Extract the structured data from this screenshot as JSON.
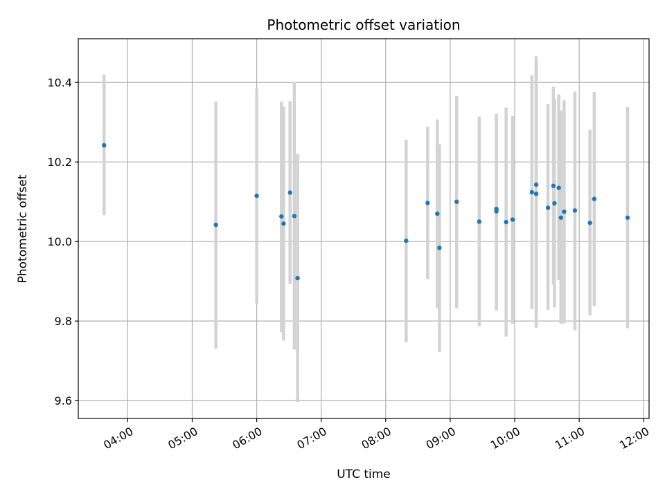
{
  "chart_data": {
    "type": "scatter",
    "title": "Photometric offset variation",
    "xlabel": "UTC time",
    "ylabel": "Photometric offset",
    "xlim": [
      "03:14",
      "12:05"
    ],
    "ylim": [
      9.555,
      10.51
    ],
    "x_ticks": [
      "04:00",
      "05:00",
      "06:00",
      "07:00",
      "08:00",
      "09:00",
      "10:00",
      "11:00",
      "12:00"
    ],
    "y_ticks": [
      "9.6",
      "9.8",
      "10.0",
      "10.2",
      "10.4"
    ],
    "grid": true,
    "marker_color": "#1f77b4",
    "errorbar_color": "#d3d3d3",
    "points": [
      {
        "t": "03:38",
        "y": 10.242,
        "lo": 10.066,
        "hi": 10.42
      },
      {
        "t": "05:22",
        "y": 10.042,
        "lo": 9.731,
        "hi": 10.352
      },
      {
        "t": "06:00",
        "y": 10.115,
        "lo": 9.844,
        "hi": 10.385
      },
      {
        "t": "06:23",
        "y": 10.063,
        "lo": 9.772,
        "hi": 10.352
      },
      {
        "t": "06:25",
        "y": 10.045,
        "lo": 9.751,
        "hi": 10.339
      },
      {
        "t": "06:31",
        "y": 10.123,
        "lo": 9.893,
        "hi": 10.353
      },
      {
        "t": "06:35",
        "y": 10.064,
        "lo": 9.728,
        "hi": 10.401
      },
      {
        "t": "06:38",
        "y": 9.908,
        "lo": 9.596,
        "hi": 10.22
      },
      {
        "t": "08:19",
        "y": 10.002,
        "lo": 9.747,
        "hi": 10.256
      },
      {
        "t": "08:39",
        "y": 10.097,
        "lo": 9.906,
        "hi": 10.289
      },
      {
        "t": "08:48",
        "y": 10.07,
        "lo": 9.833,
        "hi": 10.307
      },
      {
        "t": "08:50",
        "y": 9.984,
        "lo": 9.722,
        "hi": 10.245
      },
      {
        "t": "09:06",
        "y": 10.1,
        "lo": 9.832,
        "hi": 10.366
      },
      {
        "t": "09:27",
        "y": 10.05,
        "lo": 9.787,
        "hi": 10.314
      },
      {
        "t": "09:43",
        "y": 10.082,
        "lo": 9.843,
        "hi": 10.321
      },
      {
        "t": "09:43",
        "y": 10.076,
        "lo": 9.826,
        "hi": 10.316
      },
      {
        "t": "09:52",
        "y": 10.049,
        "lo": 9.761,
        "hi": 10.337
      },
      {
        "t": "09:58",
        "y": 10.055,
        "lo": 9.793,
        "hi": 10.316
      },
      {
        "t": "10:16",
        "y": 10.124,
        "lo": 9.83,
        "hi": 10.418
      },
      {
        "t": "10:20",
        "y": 10.143,
        "lo": 9.82,
        "hi": 10.466
      },
      {
        "t": "10:20",
        "y": 10.12,
        "lo": 9.783,
        "hi": 10.457
      },
      {
        "t": "10:31",
        "y": 10.085,
        "lo": 9.828,
        "hi": 10.346
      },
      {
        "t": "10:36",
        "y": 10.14,
        "lo": 9.892,
        "hi": 10.389
      },
      {
        "t": "10:37",
        "y": 10.096,
        "lo": 9.834,
        "hi": 10.359
      },
      {
        "t": "10:41",
        "y": 10.135,
        "lo": 9.903,
        "hi": 10.37
      },
      {
        "t": "10:43",
        "y": 10.06,
        "lo": 9.793,
        "hi": 10.329
      },
      {
        "t": "10:46",
        "y": 10.075,
        "lo": 9.794,
        "hi": 10.355
      },
      {
        "t": "10:56",
        "y": 10.078,
        "lo": 9.777,
        "hi": 10.377
      },
      {
        "t": "11:10",
        "y": 10.047,
        "lo": 9.814,
        "hi": 10.281
      },
      {
        "t": "11:14",
        "y": 10.107,
        "lo": 9.838,
        "hi": 10.376
      },
      {
        "t": "11:45",
        "y": 10.06,
        "lo": 9.782,
        "hi": 10.338
      }
    ]
  }
}
